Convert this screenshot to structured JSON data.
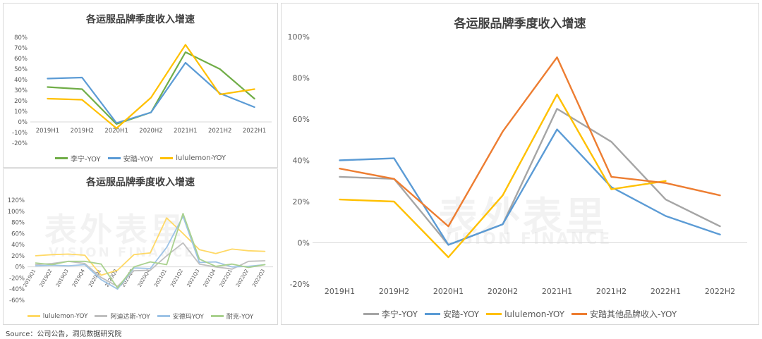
{
  "chart_data": [
    {
      "type": "line",
      "title": "各运服品牌季度收入增速",
      "categories": [
        "2019H1",
        "2019H2",
        "2020H1",
        "2020H2",
        "2021H1",
        "2021H2",
        "2022H1"
      ],
      "ylim": [
        -20,
        80
      ],
      "yticks": [
        "80%",
        "70%",
        "60%",
        "50%",
        "40%",
        "30%",
        "20%",
        "10%",
        "0%",
        "-10%",
        "-20%"
      ],
      "series": [
        {
          "name": "李宁-YOY",
          "color": "#70ad47",
          "values": [
            33,
            31,
            -2,
            9,
            66,
            50,
            22
          ]
        },
        {
          "name": "安踏-YOY",
          "color": "#5b9bd5",
          "values": [
            41,
            42,
            -1,
            9,
            56,
            27,
            14
          ]
        },
        {
          "name": "lululemon-YOY",
          "color": "#ffc000",
          "values": [
            22,
            21,
            -6,
            23,
            73,
            26,
            31
          ]
        }
      ]
    },
    {
      "type": "line",
      "title": "各运服品牌季度收入增速",
      "categories": [
        "2019Q1",
        "2019Q2",
        "2019Q3",
        "2019Q4",
        "2020Q1",
        "2020Q2",
        "2020Q3",
        "2020Q4",
        "2021Q1",
        "2021Q2",
        "2021Q3",
        "2021Q4",
        "2022Q1",
        "2022Q2",
        "2022Q3"
      ],
      "ylim": [
        -60,
        120
      ],
      "yticks": [
        "120%",
        "100%",
        "80%",
        "60%",
        "40%",
        "20%",
        "0%",
        "-20%",
        "-40%",
        "-60%"
      ],
      "series": [
        {
          "name": "lululemon-YOY",
          "color": "#ffd966",
          "values": [
            20,
            22,
            23,
            21,
            -15,
            -6,
            22,
            25,
            88,
            60,
            31,
            24,
            32,
            29,
            28
          ]
        },
        {
          "name": "阿迪达斯-YOY",
          "color": "#bfbfbf",
          "values": [
            4,
            6,
            10,
            6,
            -19,
            -35,
            -7,
            -6,
            20,
            43,
            5,
            0,
            -4,
            10,
            11
          ]
        },
        {
          "name": "安德玛YOY",
          "color": "#9dc3e6",
          "values": [
            2,
            3,
            2,
            4,
            -23,
            -40,
            -2,
            -3,
            35,
            91,
            8,
            9,
            0,
            1,
            4
          ]
        },
        {
          "name": "耐克-YOY",
          "color": "#a9d18e",
          "values": [
            7,
            4,
            10,
            10,
            5,
            -38,
            0,
            9,
            4,
            96,
            14,
            1,
            5,
            -1,
            4
          ]
        }
      ]
    },
    {
      "type": "line",
      "title": "各运服品牌季度收入增速",
      "categories": [
        "2019H1",
        "2019H2",
        "2020H1",
        "2020H2",
        "2021H1",
        "2021H2",
        "2022H1",
        "2022H2"
      ],
      "ylim": [
        -20,
        100
      ],
      "yticks": [
        "100%",
        "80%",
        "60%",
        "40%",
        "20%",
        "0%",
        "-20%"
      ],
      "series": [
        {
          "name": "李宁-YOY",
          "color": "#a5a5a5",
          "values": [
            32,
            31,
            -1,
            9,
            65,
            49,
            21,
            8
          ]
        },
        {
          "name": "安踏-YOY",
          "color": "#5b9bd5",
          "values": [
            40,
            41,
            -1,
            9,
            55,
            27,
            13,
            4
          ]
        },
        {
          "name": "lululemon-YOY",
          "color": "#ffc000",
          "values": [
            21,
            20,
            -7,
            23,
            72,
            26,
            30,
            null
          ]
        },
        {
          "name": "安踏其他品牌收入-YOY",
          "color": "#ed7d31",
          "values": [
            36,
            31,
            8,
            54,
            90,
            32,
            29,
            23
          ]
        }
      ]
    }
  ],
  "watermark": {
    "cn": "表外表里",
    "en": "VISION FINANCE"
  },
  "source": "Source：公司公告，洞见数据研究院"
}
